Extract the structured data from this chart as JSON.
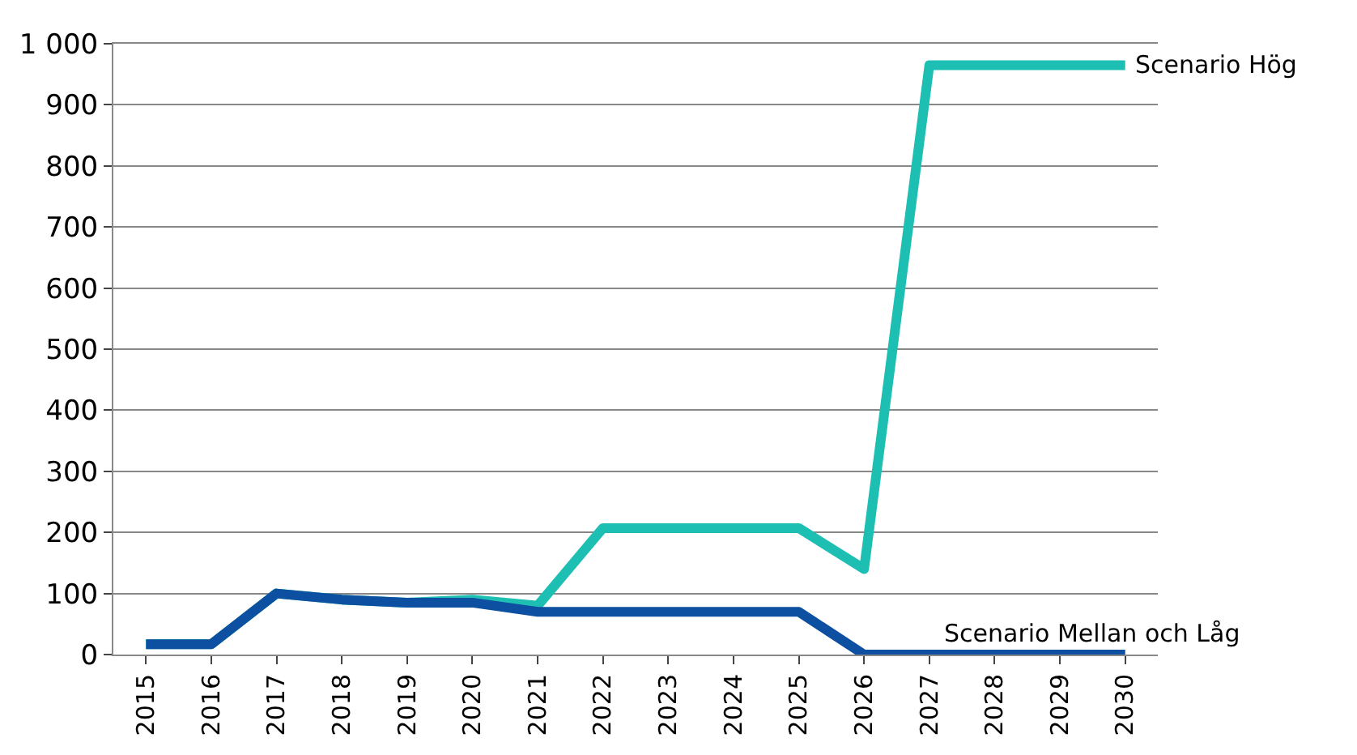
{
  "chart_data": {
    "type": "line",
    "categories": [
      "2015",
      "2016",
      "2017",
      "2018",
      "2019",
      "2020",
      "2021",
      "2022",
      "2023",
      "2024",
      "2025",
      "2026",
      "2027",
      "2028",
      "2029",
      "2030"
    ],
    "series": [
      {
        "name": "Scenario Hög",
        "color": "#1ebfb3",
        "values": [
          17,
          17,
          100,
          90,
          85,
          90,
          80,
          207,
          207,
          207,
          207,
          140,
          965,
          965,
          965,
          965
        ]
      },
      {
        "name": "Scenario Mellan och Låg",
        "color": "#0d4fa0",
        "values": [
          17,
          17,
          100,
          90,
          85,
          85,
          70,
          70,
          70,
          70,
          70,
          0,
          0,
          0,
          0,
          0
        ]
      }
    ],
    "ylim": [
      0,
      1000
    ],
    "yticks": [
      0,
      100,
      200,
      300,
      400,
      500,
      600,
      700,
      800,
      900,
      {
        "value": 1000,
        "label": "1 000"
      }
    ],
    "grid": "y",
    "legend": false,
    "marker": "none",
    "line_style": "solid"
  }
}
